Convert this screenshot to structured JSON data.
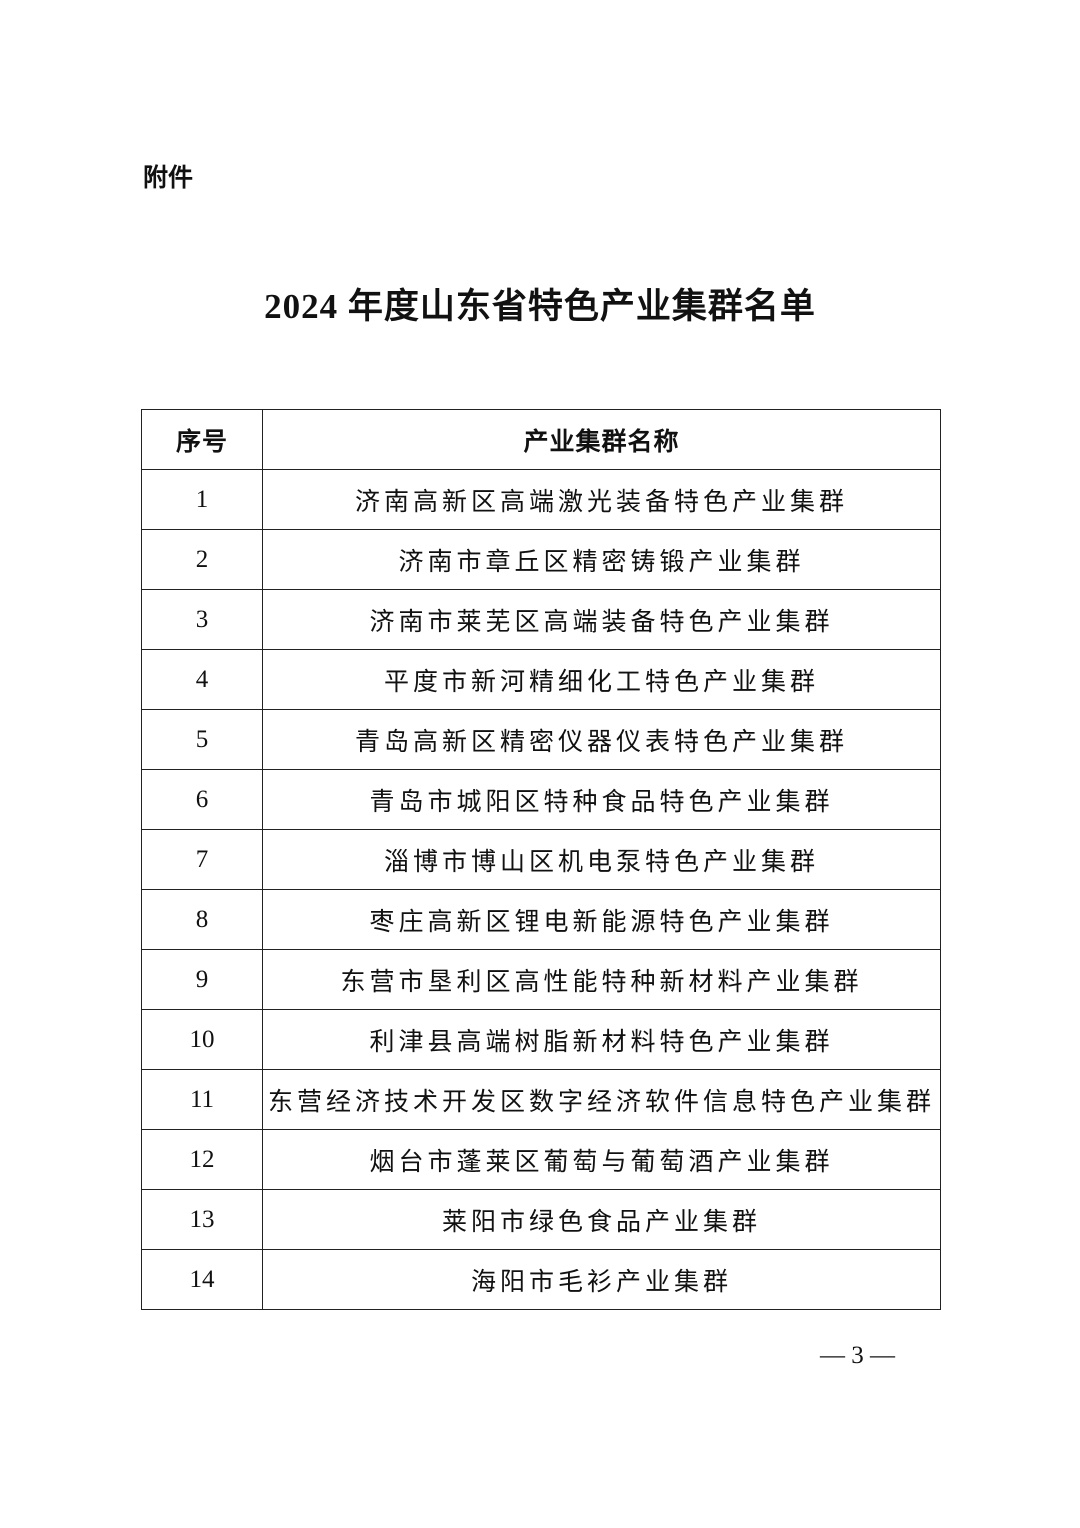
{
  "header": {
    "label": "附件",
    "title": "2024 年度山东省特色产业集群名单"
  },
  "table": {
    "columns": [
      "序号",
      "产业集群名称"
    ],
    "rows": [
      [
        "1",
        "济南高新区高端激光装备特色产业集群"
      ],
      [
        "2",
        "济南市章丘区精密铸锻产业集群"
      ],
      [
        "3",
        "济南市莱芜区高端装备特色产业集群"
      ],
      [
        "4",
        "平度市新河精细化工特色产业集群"
      ],
      [
        "5",
        "青岛高新区精密仪器仪表特色产业集群"
      ],
      [
        "6",
        "青岛市城阳区特种食品特色产业集群"
      ],
      [
        "7",
        "淄博市博山区机电泵特色产业集群"
      ],
      [
        "8",
        "枣庄高新区锂电新能源特色产业集群"
      ],
      [
        "9",
        "东营市垦利区高性能特种新材料产业集群"
      ],
      [
        "10",
        "利津县高端树脂新材料特色产业集群"
      ],
      [
        "11",
        "东营经济技术开发区数字经济软件信息特色产业集群"
      ],
      [
        "12",
        "烟台市蓬莱区葡萄与葡萄酒产业集群"
      ],
      [
        "13",
        "莱阳市绿色食品产业集群"
      ],
      [
        "14",
        "海阳市毛衫产业集群"
      ]
    ]
  },
  "footer": {
    "page": "— 3 —"
  }
}
